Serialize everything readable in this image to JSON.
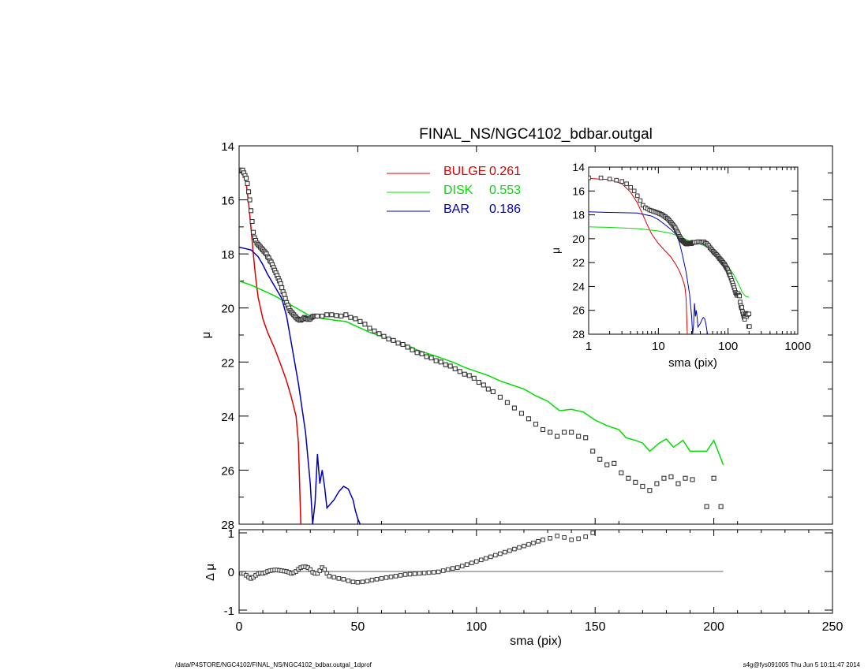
{
  "chart_data": [
    {
      "id": "main",
      "type": "line",
      "title": "FINAL_NS/NGC4102_bdbar.outgal",
      "xlabel": "",
      "ylabel": "μ",
      "xlim": [
        0,
        250
      ],
      "ylim": [
        28,
        14
      ],
      "x_ticks": [
        0,
        50,
        100,
        150,
        200,
        250
      ],
      "y_ticks": [
        14,
        16,
        18,
        20,
        22,
        24,
        26,
        28
      ],
      "legend_position": "top-center",
      "legend": [
        {
          "label": "BULGE",
          "value": "0.261",
          "color": "#dd0000"
        },
        {
          "label": "DISK",
          "value": "0.553",
          "color": "#00dd00"
        },
        {
          "label": "BAR",
          "value": "0.186",
          "color": "#0000bb"
        }
      ],
      "series": [
        {
          "name": "BULGE",
          "color": "#dd0000",
          "x": [
            1,
            2,
            3,
            4,
            5,
            6,
            7,
            8,
            10,
            12,
            15,
            18,
            20,
            22,
            24,
            25,
            25.5,
            26
          ],
          "y": [
            14.95,
            15.05,
            15.4,
            16.1,
            17.0,
            18.0,
            18.9,
            19.6,
            20.4,
            20.9,
            21.5,
            22.2,
            22.7,
            23.3,
            24.0,
            25.0,
            26.5,
            28
          ]
        },
        {
          "name": "DISK",
          "color": "#00dd00",
          "x": [
            0,
            5,
            10,
            15,
            20,
            25,
            30,
            33,
            36,
            40,
            45,
            50,
            55,
            60,
            65,
            70,
            75,
            80,
            85,
            90,
            95,
            100,
            105,
            110,
            115,
            120,
            125,
            130,
            135,
            140,
            145,
            150,
            155,
            160,
            163,
            167,
            170,
            173,
            177,
            180,
            183,
            187,
            190,
            193,
            197,
            200,
            204
          ],
          "y": [
            19.0,
            19.15,
            19.35,
            19.55,
            19.8,
            20.05,
            20.3,
            20.35,
            20.4,
            20.45,
            20.5,
            20.7,
            20.9,
            21.05,
            21.2,
            21.35,
            21.55,
            21.7,
            21.85,
            22.0,
            22.2,
            22.35,
            22.5,
            22.7,
            22.85,
            23.0,
            23.25,
            23.45,
            23.8,
            23.75,
            23.85,
            24.15,
            24.35,
            24.5,
            24.8,
            24.9,
            25.0,
            25.3,
            25.0,
            24.85,
            25.15,
            24.9,
            25.3,
            25.3,
            25.3,
            24.9,
            25.8
          ]
        },
        {
          "name": "BAR",
          "color": "#0000bb",
          "x": [
            0,
            5,
            8,
            10,
            12,
            15,
            18,
            20,
            22,
            25,
            28,
            30,
            31,
            32,
            33,
            34,
            35,
            36,
            37,
            38,
            40,
            42,
            44,
            46,
            48,
            49,
            50,
            51
          ],
          "y": [
            17.75,
            17.85,
            18.1,
            18.4,
            18.75,
            19.2,
            19.65,
            20.3,
            21.3,
            22.8,
            24.6,
            26.5,
            28,
            27.2,
            25.4,
            26.5,
            26.0,
            26.6,
            27.4,
            27.3,
            27.1,
            26.8,
            26.6,
            26.7,
            27.1,
            27.5,
            27.8,
            28
          ]
        }
      ],
      "data_points": {
        "name": "data",
        "x": [
          1,
          1.5,
          2,
          2.5,
          3,
          3.5,
          4,
          4.5,
          5,
          5.5,
          6,
          6.5,
          7,
          7.5,
          8,
          8.5,
          9,
          9.5,
          10,
          10.5,
          11,
          11.5,
          12,
          12.5,
          13,
          13.5,
          14,
          14.5,
          15,
          15.5,
          16,
          16.5,
          17,
          17.5,
          18,
          18.5,
          19,
          19.5,
          20,
          20.5,
          21,
          21.5,
          22,
          22.5,
          23,
          23.5,
          24,
          24.5,
          25,
          25.5,
          26,
          26.5,
          27,
          27.5,
          28,
          28.5,
          29,
          29.5,
          30,
          30.5,
          31,
          31.5,
          32,
          32.5,
          33,
          35,
          37,
          39,
          41,
          43,
          45,
          47,
          49,
          51,
          53,
          55,
          57,
          59,
          61,
          63,
          65,
          67,
          69,
          71,
          73,
          75,
          77,
          79,
          81,
          83,
          85,
          87,
          89,
          91,
          93,
          95,
          97,
          99,
          101,
          103,
          105,
          107,
          110,
          113,
          116,
          119,
          122,
          125,
          128,
          131,
          134,
          137,
          140,
          143,
          146,
          149,
          152,
          155,
          158,
          161,
          164,
          167,
          170,
          173,
          176,
          179,
          182,
          185,
          188,
          191,
          197,
          200,
          203
        ],
        "y": [
          14.9,
          14.9,
          15.0,
          15.1,
          15.2,
          15.4,
          15.7,
          16.0,
          16.4,
          16.8,
          17.2,
          17.4,
          17.5,
          17.6,
          17.65,
          17.7,
          17.75,
          17.8,
          17.85,
          17.9,
          17.95,
          18.0,
          18.1,
          18.15,
          18.25,
          18.3,
          18.4,
          18.5,
          18.6,
          18.7,
          18.8,
          18.9,
          19.0,
          19.1,
          19.25,
          19.4,
          19.5,
          19.65,
          19.8,
          19.9,
          20.0,
          20.1,
          20.15,
          20.2,
          20.25,
          20.3,
          20.35,
          20.4,
          20.42,
          20.45,
          20.45,
          20.42,
          20.4,
          20.35,
          20.38,
          20.4,
          20.42,
          20.42,
          20.4,
          20.35,
          20.32,
          20.3,
          20.3,
          20.3,
          20.3,
          20.3,
          20.25,
          20.25,
          20.28,
          20.3,
          20.25,
          20.35,
          20.4,
          20.5,
          20.6,
          20.75,
          20.85,
          20.95,
          21.05,
          21.15,
          21.2,
          21.3,
          21.35,
          21.45,
          21.55,
          21.65,
          21.7,
          21.8,
          21.85,
          21.95,
          22.0,
          22.1,
          22.15,
          22.25,
          22.35,
          22.45,
          22.5,
          22.6,
          22.75,
          22.85,
          23.0,
          23.1,
          23.3,
          23.5,
          23.7,
          23.9,
          24.1,
          24.3,
          24.5,
          24.6,
          24.75,
          24.6,
          24.6,
          24.75,
          24.8,
          25.3,
          25.6,
          25.8,
          25.75,
          26.1,
          26.3,
          26.45,
          26.6,
          26.75,
          26.5,
          26.3,
          26.25,
          26.5,
          26.3,
          26.35,
          27.35,
          26.3,
          27.35
        ]
      }
    },
    {
      "id": "inset",
      "type": "line",
      "title": "",
      "xlabel": "sma (pix)",
      "ylabel": "μ",
      "xscale": "log",
      "xlim": [
        1,
        1000
      ],
      "ylim": [
        28,
        14
      ],
      "x_ticks": [
        1,
        10,
        100,
        1000
      ],
      "x_tick_labels": [
        "1",
        "10",
        "100",
        "1000"
      ],
      "y_ticks": [
        14,
        16,
        18,
        20,
        22,
        24,
        26,
        28
      ],
      "series": [
        {
          "name": "BULGE",
          "color": "#dd0000",
          "x": [
            1,
            2,
            3,
            4,
            5,
            6,
            7,
            8,
            10,
            12,
            15,
            18,
            20,
            22,
            24,
            25,
            25.5,
            26
          ],
          "y": [
            14.95,
            15.05,
            15.4,
            16.1,
            17.0,
            18.0,
            18.9,
            19.6,
            20.4,
            20.9,
            21.5,
            22.2,
            22.7,
            23.3,
            24.0,
            25.0,
            26.5,
            28
          ]
        },
        {
          "name": "DISK",
          "color": "#00dd00",
          "x": [
            1,
            2,
            5,
            10,
            15,
            20,
            25,
            30,
            40,
            50,
            60,
            70,
            80,
            90,
            100,
            120,
            140,
            160,
            180,
            200
          ],
          "y": [
            19.0,
            19.05,
            19.15,
            19.35,
            19.55,
            19.8,
            20.05,
            20.3,
            20.45,
            20.7,
            21.05,
            21.35,
            21.7,
            22.0,
            22.35,
            23.0,
            23.75,
            24.5,
            24.85,
            24.9
          ]
        },
        {
          "name": "BAR",
          "color": "#0000bb",
          "x": [
            1,
            5,
            8,
            10,
            12,
            15,
            18,
            20,
            22,
            25,
            28,
            30,
            31,
            32,
            33,
            34,
            35,
            36,
            37,
            38,
            40,
            42,
            44,
            46,
            48,
            50,
            51
          ],
          "y": [
            17.75,
            17.85,
            18.1,
            18.4,
            18.75,
            19.2,
            19.65,
            20.3,
            21.3,
            22.8,
            24.6,
            26.5,
            28,
            27.2,
            25.4,
            26.5,
            26.0,
            26.6,
            27.4,
            27.3,
            27.1,
            26.8,
            26.6,
            26.7,
            27.1,
            27.8,
            28
          ]
        }
      ]
    },
    {
      "id": "residual",
      "type": "scatter",
      "title": "",
      "xlabel": "sma (pix)",
      "ylabel": "Δ μ",
      "xlim": [
        0,
        250
      ],
      "ylim": [
        -1,
        1
      ],
      "x_ticks": [
        0,
        50,
        100,
        150,
        200,
        250
      ],
      "y_ticks": [
        -1,
        0,
        1
      ],
      "zero_line_to": 204,
      "x": [
        1,
        2,
        3,
        4,
        5,
        6,
        7,
        8,
        9,
        10,
        11,
        12,
        13,
        14,
        15,
        16,
        17,
        18,
        19,
        20,
        21,
        22,
        23,
        24,
        25,
        26,
        27,
        28,
        29,
        30,
        31,
        32,
        33,
        34,
        35,
        36,
        37,
        38,
        40,
        42,
        44,
        46,
        48,
        50,
        52,
        54,
        56,
        58,
        60,
        62,
        64,
        66,
        68,
        70,
        72,
        74,
        76,
        78,
        80,
        82,
        84,
        86,
        88,
        90,
        92,
        94,
        96,
        98,
        100,
        102,
        104,
        106,
        108,
        110,
        112,
        114,
        116,
        118,
        120,
        122,
        124,
        126,
        128,
        131,
        134,
        137,
        140,
        143,
        146,
        149
      ],
      "y": [
        -0.05,
        -0.05,
        -0.1,
        -0.15,
        -0.18,
        -0.15,
        -0.1,
        -0.06,
        -0.04,
        -0.05,
        -0.03,
        0,
        0.02,
        0.03,
        0.04,
        0.04,
        0.03,
        0.02,
        0.01,
        0,
        -0.02,
        -0.05,
        -0.03,
        0,
        0.06,
        0.1,
        0.12,
        0.12,
        0.1,
        0.05,
        -0.02,
        -0.05,
        -0.05,
        0.02,
        0.1,
        0.05,
        -0.05,
        -0.12,
        -0.15,
        -0.18,
        -0.2,
        -0.24,
        -0.27,
        -0.28,
        -0.27,
        -0.25,
        -0.22,
        -0.2,
        -0.18,
        -0.16,
        -0.14,
        -0.12,
        -0.1,
        -0.08,
        -0.07,
        -0.06,
        -0.05,
        -0.04,
        -0.03,
        -0.02,
        -0.01,
        0.02,
        0.05,
        0.08,
        0.1,
        0.14,
        0.18,
        0.22,
        0.26,
        0.3,
        0.34,
        0.38,
        0.42,
        0.46,
        0.5,
        0.54,
        0.58,
        0.62,
        0.66,
        0.7,
        0.74,
        0.78,
        0.82,
        0.86,
        0.92,
        0.88,
        0.82,
        0.85,
        0.9,
        1.0
      ]
    }
  ],
  "footer": {
    "left": "/data/P4STORE/NGC4102/FINAL_NS/NGC4102_bdbar.outgal_1dprof",
    "right": "s4g@fys091005  Thu Jun  5 10:11:47 2014"
  }
}
